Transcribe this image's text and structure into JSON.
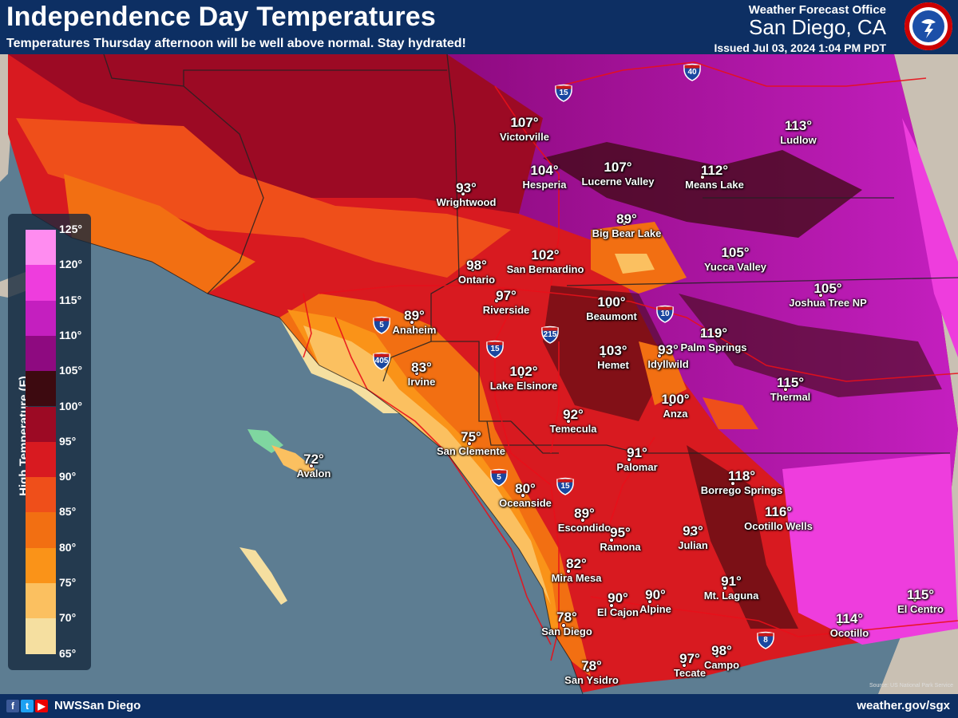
{
  "header": {
    "title": "Independence Day Temperatures",
    "subtitle": "Temperatures Thursday afternoon will be well above normal. Stay hydrated!",
    "office_line1": "Weather Forecast Office",
    "office_line2": "San Diego, CA",
    "issued": "Issued Jul 03, 2024 1:04 PM PDT"
  },
  "legend": {
    "title": "High Temperature (F)",
    "ticks": [
      "125°",
      "120°",
      "115°",
      "110°",
      "105°",
      "100°",
      "95°",
      "90°",
      "85°",
      "80°",
      "75°",
      "70°",
      "65°"
    ],
    "colors": [
      "#ff8cf0",
      "#ee3ddd",
      "#c41fbf",
      "#8e0a80",
      "#3d0a10",
      "#9c0a24",
      "#d81a20",
      "#ef4f1a",
      "#f26f12",
      "#fa9318",
      "#fbc060",
      "#f5dfa0",
      "#7fd6a0"
    ]
  },
  "cities": [
    {
      "temp": "113°",
      "name": "Ludlow"
    },
    {
      "temp": "107°",
      "name": "Victorville"
    },
    {
      "temp": "104°",
      "name": "Hesperia"
    },
    {
      "temp": "107°",
      "name": "Lucerne Valley"
    },
    {
      "temp": "112°",
      "name": "Means Lake"
    },
    {
      "temp": "93°",
      "name": "Wrightwood"
    },
    {
      "temp": "89°",
      "name": "Big Bear Lake"
    },
    {
      "temp": "98°",
      "name": "Ontario"
    },
    {
      "temp": "102°",
      "name": "San Bernardino"
    },
    {
      "temp": "105°",
      "name": "Yucca Valley"
    },
    {
      "temp": "105°",
      "name": "Joshua Tree NP"
    },
    {
      "temp": "97°",
      "name": "Riverside"
    },
    {
      "temp": "100°",
      "name": "Beaumont"
    },
    {
      "temp": "89°",
      "name": "Anaheim"
    },
    {
      "temp": "119°",
      "name": "Palm Springs"
    },
    {
      "temp": "103°",
      "name": "Hemet"
    },
    {
      "temp": "93°",
      "name": "Idyllwild"
    },
    {
      "temp": "83°",
      "name": "Irvine"
    },
    {
      "temp": "102°",
      "name": "Lake Elsinore"
    },
    {
      "temp": "115°",
      "name": "Thermal"
    },
    {
      "temp": "100°",
      "name": "Anza"
    },
    {
      "temp": "92°",
      "name": "Temecula"
    },
    {
      "temp": "75°",
      "name": "San Clemente"
    },
    {
      "temp": "72°",
      "name": "Avalon"
    },
    {
      "temp": "91°",
      "name": "Palomar"
    },
    {
      "temp": "118°",
      "name": "Borrego Springs"
    },
    {
      "temp": "80°",
      "name": "Oceanside"
    },
    {
      "temp": "116°",
      "name": "Ocotillo Wells"
    },
    {
      "temp": "89°",
      "name": "Escondido"
    },
    {
      "temp": "95°",
      "name": "Ramona"
    },
    {
      "temp": "93°",
      "name": "Julian"
    },
    {
      "temp": "82°",
      "name": "Mira Mesa"
    },
    {
      "temp": "91°",
      "name": "Mt. Laguna"
    },
    {
      "temp": "90°",
      "name": "El Cajon"
    },
    {
      "temp": "90°",
      "name": "Alpine"
    },
    {
      "temp": "115°",
      "name": "El Centro"
    },
    {
      "temp": "78°",
      "name": "San Diego"
    },
    {
      "temp": "114°",
      "name": "Ocotillo"
    },
    {
      "temp": "97°",
      "name": "Tecate"
    },
    {
      "temp": "98°",
      "name": "Campo"
    },
    {
      "temp": "78°",
      "name": "San Ysidro"
    }
  ],
  "shields": [
    "40",
    "15",
    "5",
    "405",
    "215",
    "15",
    "10",
    "15",
    "5",
    "8"
  ],
  "footer": {
    "handle": "NWSSan Diego",
    "url": "weather.gov/sgx",
    "credit": "Source: US National Park Service"
  }
}
